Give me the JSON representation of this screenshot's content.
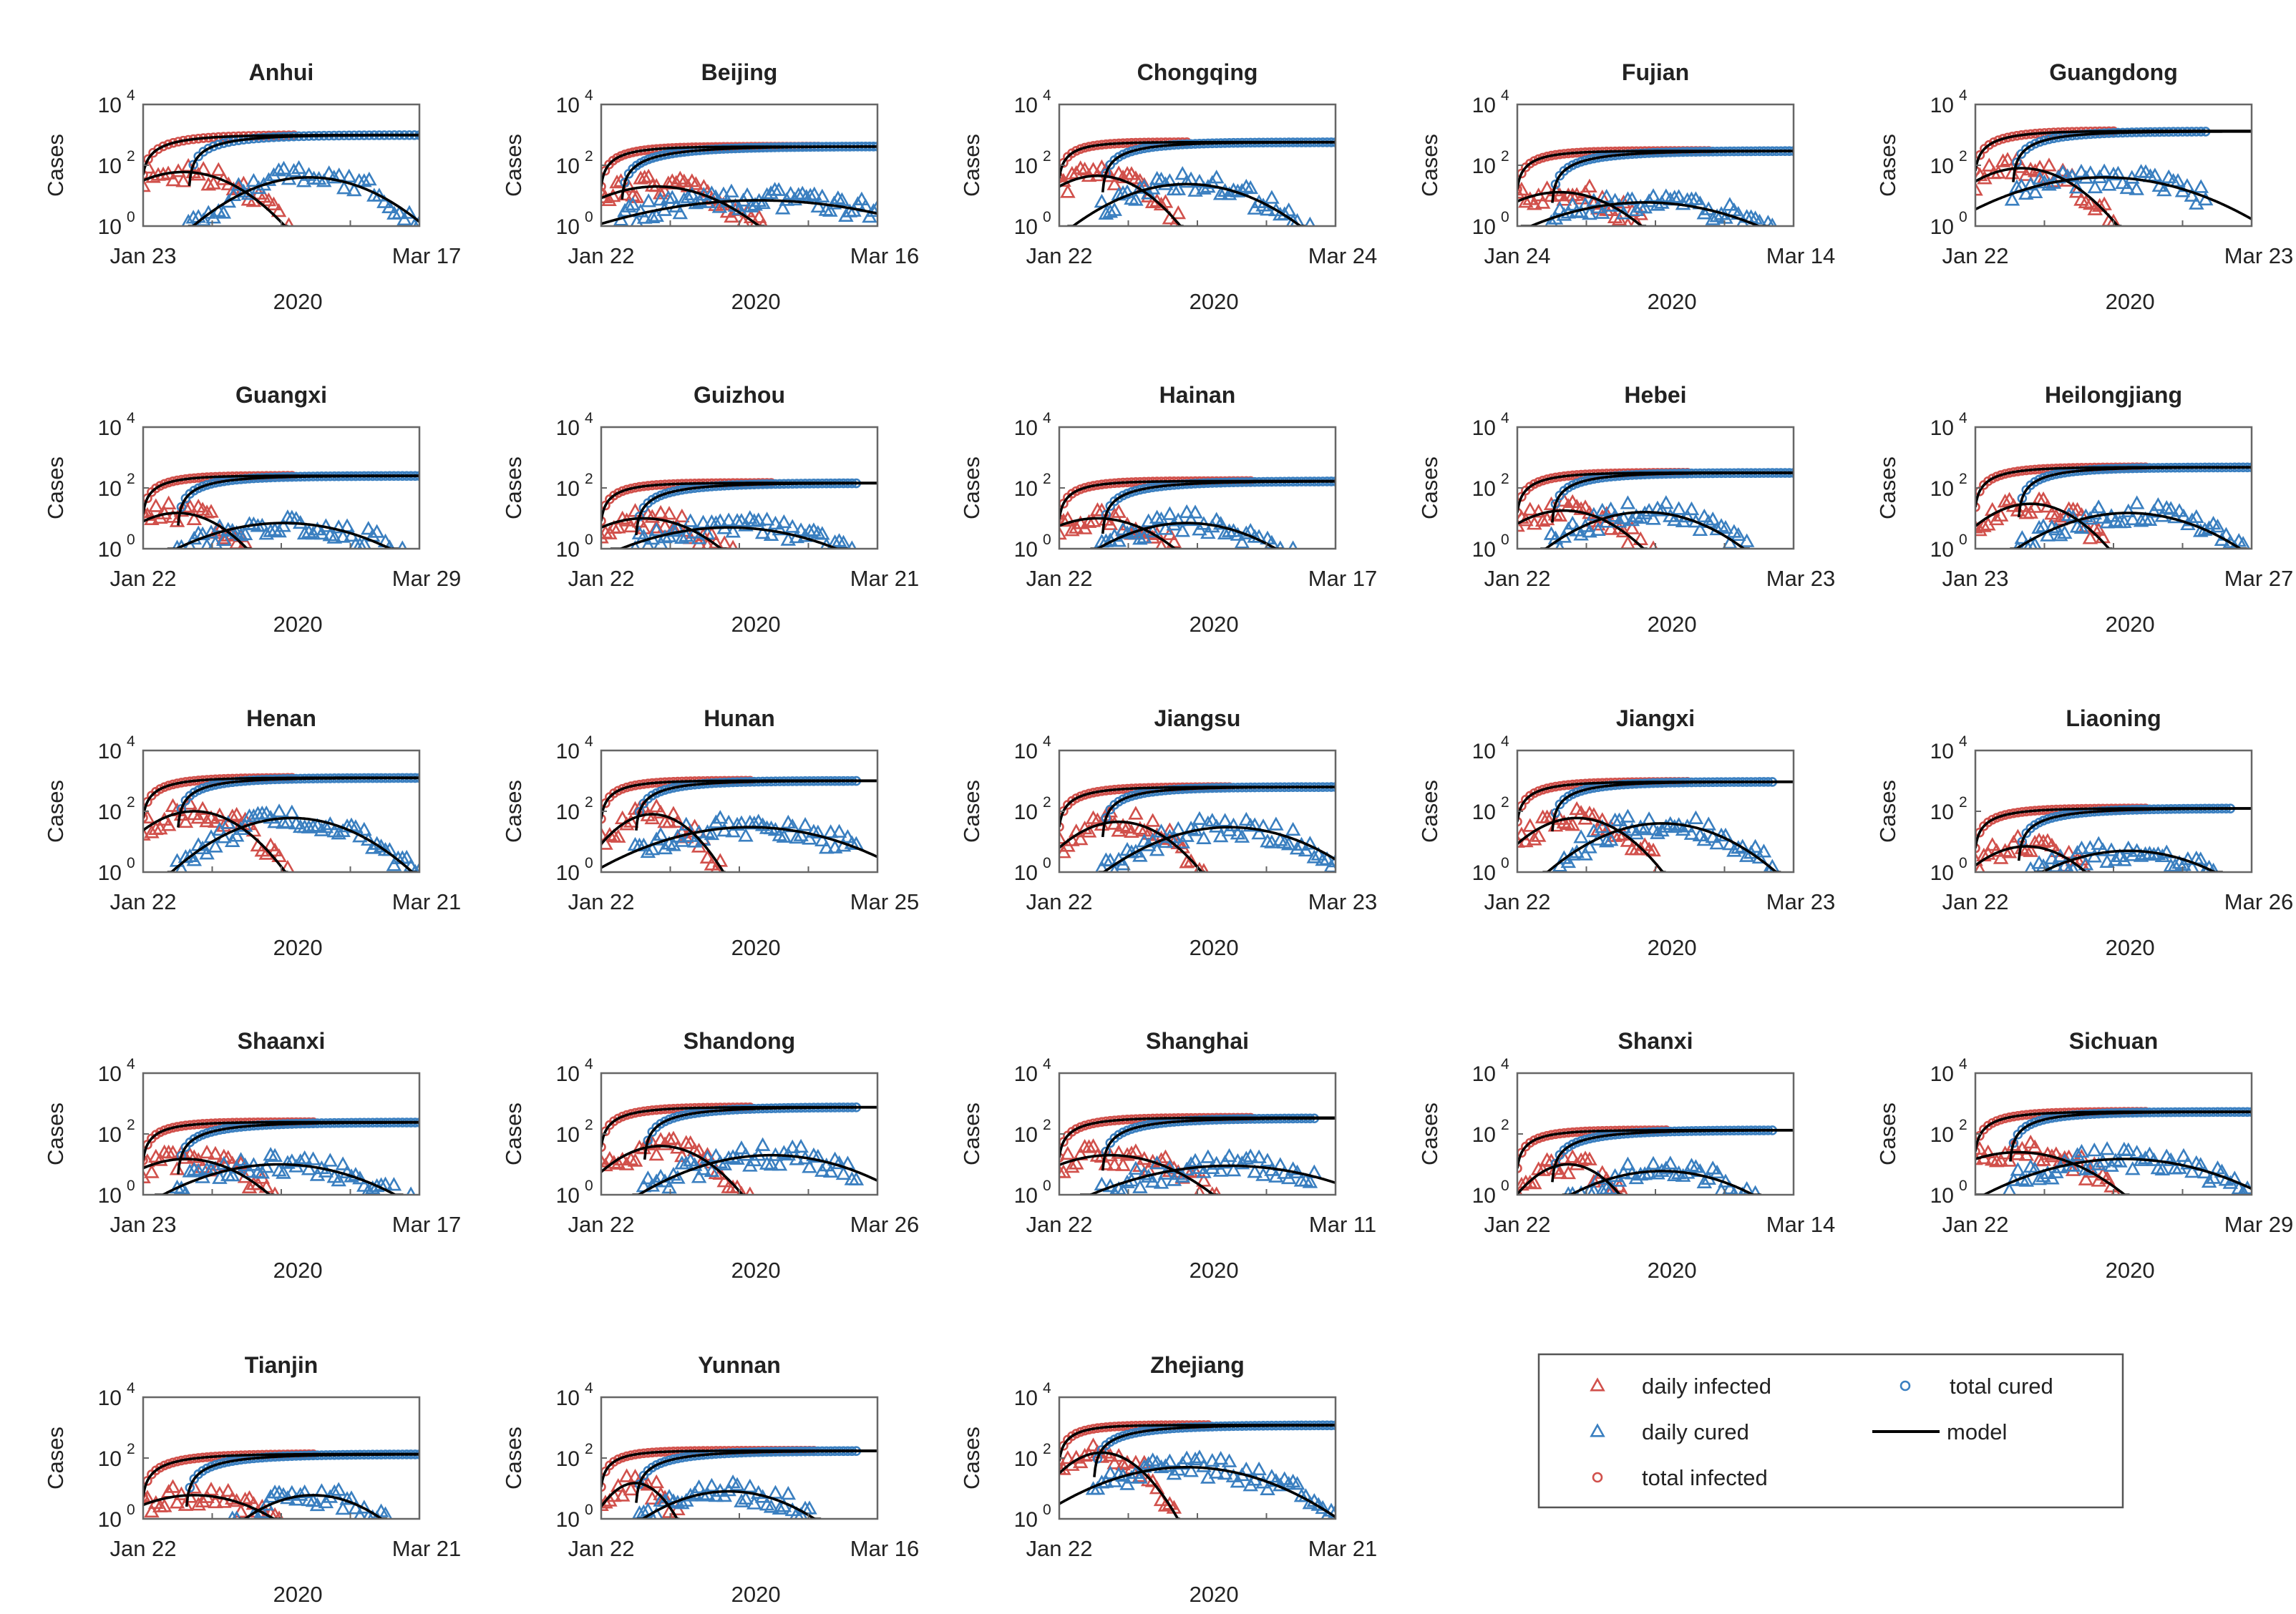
{
  "colors": {
    "infected": "#d1504b",
    "cured": "#3a7fc0",
    "model": "#000000",
    "axis": "#666666"
  },
  "chart_data": {
    "type": "scatter",
    "layout": "small-multiples",
    "yscale": "log",
    "ylabel": "Cases",
    "xlabel": "2020",
    "yticks": [
      {
        "value": 1,
        "base": "10",
        "exp": "0"
      },
      {
        "value": 100,
        "base": "10",
        "exp": "2"
      },
      {
        "value": 10000,
        "base": "10",
        "exp": "4"
      }
    ],
    "ylim": [
      1,
      10000
    ],
    "legend": {
      "position": "bottom-right",
      "entries": [
        {
          "label": "daily infected",
          "marker": "triangle",
          "color": "infected"
        },
        {
          "label": "total cured",
          "marker": "circle",
          "color": "cured"
        },
        {
          "label": "daily cured",
          "marker": "triangle",
          "color": "cured"
        },
        {
          "label": "model",
          "marker": "line",
          "color": "model"
        },
        {
          "label": "total infected",
          "marker": "circle",
          "color": "infected"
        }
      ]
    },
    "panels": [
      {
        "title": "Anhui",
        "start": "Jan 23",
        "end": "Mar 17",
        "days": 55,
        "total_infected": {
          "plateau": 990,
          "tau": 8,
          "obs_end": 30
        },
        "total_cured": {
          "plateau": 985,
          "tau": 9,
          "lag": 9,
          "obs_end": 55
        },
        "daily_infected": {
          "peak": 60,
          "center": 8,
          "width": 10,
          "obs_end": 30
        },
        "daily_cured": {
          "peak": 40,
          "center": 33,
          "width": 12,
          "obs_start": 9,
          "obs_end": 55
        }
      },
      {
        "title": "Beijing",
        "start": "Jan 22",
        "end": "Mar 16",
        "days": 70,
        "total_infected": {
          "plateau": 410,
          "tau": 8,
          "obs_end": 55
        },
        "total_cured": {
          "plateau": 420,
          "tau": 15,
          "lag": 5,
          "obs_end": 70
        },
        "daily_infected": {
          "peak": 20,
          "center": 14,
          "width": 15,
          "obs_end": 55
        },
        "daily_cured": {
          "peak": 7,
          "center": 40,
          "width": 30,
          "obs_start": 5,
          "obs_end": 70
        }
      },
      {
        "title": "Chongqing",
        "start": "Jan 22",
        "end": "Mar 24",
        "days": 65,
        "total_infected": {
          "plateau": 576,
          "tau": 6,
          "obs_end": 30
        },
        "total_cured": {
          "plateau": 570,
          "tau": 10,
          "lag": 10,
          "obs_end": 65
        },
        "daily_infected": {
          "peak": 45,
          "center": 9,
          "width": 10,
          "obs_end": 30
        },
        "daily_cured": {
          "peak": 24,
          "center": 30,
          "width": 15,
          "obs_start": 10,
          "obs_end": 65
        }
      },
      {
        "title": "Fujian",
        "start": "Jan 24",
        "end": "Mar 14",
        "days": 65,
        "total_infected": {
          "plateau": 296,
          "tau": 7,
          "obs_end": 45
        },
        "total_cured": {
          "plateau": 295,
          "tau": 12,
          "lag": 8,
          "obs_end": 65
        },
        "daily_infected": {
          "peak": 13,
          "center": 10,
          "width": 12,
          "obs_end": 45
        },
        "daily_cured": {
          "peak": 6,
          "center": 30,
          "width": 20,
          "obs_start": 8,
          "obs_end": 65
        }
      },
      {
        "title": "Guangdong",
        "start": "Jan 22",
        "end": "Mar 23",
        "days": 60,
        "total_infected": {
          "plateau": 1350,
          "tau": 8,
          "obs_end": 30
        },
        "total_cured": {
          "plateau": 1300,
          "tau": 10,
          "lag": 8,
          "obs_end": 50
        },
        "daily_infected": {
          "peak": 80,
          "center": 10,
          "width": 10,
          "obs_end": 30
        },
        "daily_cured": {
          "peak": 40,
          "center": 28,
          "width": 18,
          "obs_start": 8,
          "obs_end": 50
        }
      },
      {
        "title": "Guangxi",
        "start": "Jan 22",
        "end": "Mar 29",
        "days": 65,
        "total_infected": {
          "plateau": 252,
          "tau": 7,
          "obs_end": 35
        },
        "total_cured": {
          "plateau": 248,
          "tau": 10,
          "lag": 8,
          "obs_end": 65
        },
        "daily_infected": {
          "peak": 15,
          "center": 8,
          "width": 10,
          "obs_end": 35
        },
        "daily_cured": {
          "peak": 7,
          "center": 33,
          "width": 18,
          "obs_start": 8,
          "obs_end": 65
        }
      },
      {
        "title": "Guizhou",
        "start": "Jan 22",
        "end": "Mar 21",
        "days": 65,
        "total_infected": {
          "plateau": 146,
          "tau": 7,
          "obs_end": 40
        },
        "total_cured": {
          "plateau": 144,
          "tau": 12,
          "lag": 8,
          "obs_end": 60
        },
        "daily_infected": {
          "peak": 10,
          "center": 10,
          "width": 12,
          "obs_end": 40
        },
        "daily_cured": {
          "peak": 5,
          "center": 30,
          "width": 20,
          "obs_start": 8,
          "obs_end": 60
        }
      },
      {
        "title": "Hainan",
        "start": "Jan 22",
        "end": "Mar 17",
        "days": 65,
        "total_infected": {
          "plateau": 168,
          "tau": 7,
          "obs_end": 45
        },
        "total_cured": {
          "plateau": 165,
          "tau": 12,
          "lag": 10,
          "obs_end": 65
        },
        "daily_infected": {
          "peak": 10,
          "center": 9,
          "width": 12,
          "obs_end": 45
        },
        "daily_cured": {
          "peak": 7,
          "center": 30,
          "width": 15,
          "obs_start": 10,
          "obs_end": 65
        }
      },
      {
        "title": "Hebei",
        "start": "Jan 22",
        "end": "Mar 23",
        "days": 65,
        "total_infected": {
          "plateau": 318,
          "tau": 8,
          "obs_end": 40
        },
        "total_cured": {
          "plateau": 312,
          "tau": 10,
          "lag": 8,
          "obs_end": 65
        },
        "daily_infected": {
          "peak": 18,
          "center": 11,
          "width": 11,
          "obs_end": 40
        },
        "daily_cured": {
          "peak": 16,
          "center": 30,
          "width": 14,
          "obs_start": 8,
          "obs_end": 65
        }
      },
      {
        "title": "Heilongjiang",
        "start": "Jan 23",
        "end": "Mar 27",
        "days": 65,
        "total_infected": {
          "plateau": 480,
          "tau": 8,
          "obs_end": 40
        },
        "total_cured": {
          "plateau": 475,
          "tau": 10,
          "lag": 10,
          "obs_end": 65
        },
        "daily_infected": {
          "peak": 30,
          "center": 13,
          "width": 10,
          "obs_end": 40
        },
        "daily_cured": {
          "peak": 15,
          "center": 36,
          "width": 16,
          "obs_start": 10,
          "obs_end": 65
        }
      },
      {
        "title": "Henan",
        "start": "Jan 22",
        "end": "Mar 21",
        "days": 65,
        "total_infected": {
          "plateau": 1270,
          "tau": 8,
          "obs_end": 35
        },
        "total_cured": {
          "plateau": 1250,
          "tau": 10,
          "lag": 8,
          "obs_end": 65
        },
        "daily_infected": {
          "peak": 100,
          "center": 12,
          "width": 10,
          "obs_end": 35
        },
        "daily_cured": {
          "peak": 60,
          "center": 35,
          "width": 14,
          "obs_start": 8,
          "obs_end": 65
        }
      },
      {
        "title": "Hunan",
        "start": "Jan 22",
        "end": "Mar 25",
        "days": 65,
        "total_infected": {
          "plateau": 1018,
          "tau": 7,
          "obs_end": 35
        },
        "total_cured": {
          "plateau": 1000,
          "tau": 10,
          "lag": 8,
          "obs_end": 60
        },
        "daily_infected": {
          "peak": 80,
          "center": 12,
          "width": 8,
          "obs_end": 35
        },
        "daily_cured": {
          "peak": 30,
          "center": 35,
          "width": 20,
          "obs_start": 8,
          "obs_end": 60
        }
      },
      {
        "title": "Jiangsu",
        "start": "Jan 22",
        "end": "Mar 23",
        "days": 65,
        "total_infected": {
          "plateau": 631,
          "tau": 8,
          "obs_end": 40
        },
        "total_cured": {
          "plateau": 630,
          "tau": 10,
          "lag": 10,
          "obs_end": 65
        },
        "daily_infected": {
          "peak": 45,
          "center": 14,
          "width": 10,
          "obs_end": 40
        },
        "daily_cured": {
          "peak": 30,
          "center": 40,
          "width": 16,
          "obs_start": 10,
          "obs_end": 65
        }
      },
      {
        "title": "Jiangxi",
        "start": "Jan 22",
        "end": "Mar 23",
        "days": 65,
        "total_infected": {
          "plateau": 935,
          "tau": 8,
          "obs_end": 40
        },
        "total_cured": {
          "plateau": 930,
          "tau": 10,
          "lag": 8,
          "obs_end": 60
        },
        "daily_infected": {
          "peak": 60,
          "center": 14,
          "width": 10,
          "obs_end": 40
        },
        "daily_cured": {
          "peak": 40,
          "center": 34,
          "width": 14,
          "obs_start": 8,
          "obs_end": 60
        }
      },
      {
        "title": "Liaoning",
        "start": "Jan 22",
        "end": "Mar 26",
        "days": 65,
        "total_infected": {
          "plateau": 125,
          "tau": 8,
          "obs_end": 40
        },
        "total_cured": {
          "plateau": 125,
          "tau": 12,
          "lag": 10,
          "obs_end": 60
        },
        "daily_infected": {
          "peak": 7,
          "center": 12,
          "width": 10,
          "obs_end": 40
        },
        "daily_cured": {
          "peak": 5,
          "center": 36,
          "width": 16,
          "obs_start": 10,
          "obs_end": 60
        }
      },
      {
        "title": "Shaanxi",
        "start": "Jan 23",
        "end": "Mar 17",
        "days": 65,
        "total_infected": {
          "plateau": 245,
          "tau": 7,
          "obs_end": 40
        },
        "total_cured": {
          "plateau": 240,
          "tau": 12,
          "lag": 8,
          "obs_end": 65
        },
        "daily_infected": {
          "peak": 15,
          "center": 10,
          "width": 12,
          "obs_end": 40
        },
        "daily_cured": {
          "peak": 10,
          "center": 32,
          "width": 18,
          "obs_start": 8,
          "obs_end": 65
        }
      },
      {
        "title": "Shandong",
        "start": "Jan 22",
        "end": "Mar 26",
        "days": 65,
        "total_infected": {
          "plateau": 760,
          "tau": 8,
          "obs_end": 35
        },
        "total_cured": {
          "plateau": 760,
          "tau": 12,
          "lag": 10,
          "obs_end": 60
        },
        "daily_infected": {
          "peak": 40,
          "center": 14,
          "width": 10,
          "obs_end": 35
        },
        "daily_cured": {
          "peak": 20,
          "center": 40,
          "width": 18,
          "obs_start": 10,
          "obs_end": 60
        }
      },
      {
        "title": "Shanghai",
        "start": "Jan 22",
        "end": "Mar 11",
        "days": 65,
        "total_infected": {
          "plateau": 342,
          "tau": 8,
          "obs_end": 45
        },
        "total_cured": {
          "plateau": 330,
          "tau": 12,
          "lag": 10,
          "obs_end": 60
        },
        "daily_infected": {
          "peak": 20,
          "center": 12,
          "width": 14,
          "obs_end": 45
        },
        "daily_cured": {
          "peak": 9,
          "center": 40,
          "width": 22,
          "obs_start": 10,
          "obs_end": 60
        }
      },
      {
        "title": "Shanxi",
        "start": "Jan 22",
        "end": "Mar 14",
        "days": 65,
        "total_infected": {
          "plateau": 133,
          "tau": 7,
          "obs_end": 35
        },
        "total_cured": {
          "plateau": 133,
          "tau": 12,
          "lag": 8,
          "obs_end": 60
        },
        "daily_infected": {
          "peak": 10,
          "center": 12,
          "width": 8,
          "obs_end": 35
        },
        "daily_cured": {
          "peak": 6,
          "center": 34,
          "width": 16,
          "obs_start": 8,
          "obs_end": 60
        }
      },
      {
        "title": "Sichuan",
        "start": "Jan 22",
        "end": "Mar 29",
        "days": 65,
        "total_infected": {
          "plateau": 540,
          "tau": 8,
          "obs_end": 40
        },
        "total_cured": {
          "plateau": 530,
          "tau": 10,
          "lag": 8,
          "obs_end": 65
        },
        "daily_infected": {
          "peak": 25,
          "center": 10,
          "width": 14,
          "obs_end": 40
        },
        "daily_cured": {
          "peak": 15,
          "center": 35,
          "width": 20,
          "obs_start": 8,
          "obs_end": 65
        }
      },
      {
        "title": "Tianjin",
        "start": "Jan 22",
        "end": "Mar 21",
        "days": 65,
        "total_infected": {
          "plateau": 136,
          "tau": 10,
          "obs_end": 40
        },
        "total_cured": {
          "plateau": 133,
          "tau": 12,
          "lag": 10,
          "obs_end": 65
        },
        "daily_infected": {
          "peak": 6,
          "center": 12,
          "width": 14,
          "obs_end": 40
        },
        "daily_cured": {
          "peak": 6,
          "center": 40,
          "width": 12,
          "obs_start": 10,
          "obs_end": 65
        }
      },
      {
        "title": "Yunnan",
        "start": "Jan 22",
        "end": "Mar 16",
        "days": 65,
        "total_infected": {
          "plateau": 174,
          "tau": 6,
          "obs_end": 50
        },
        "total_cured": {
          "plateau": 172,
          "tau": 12,
          "lag": 8,
          "obs_end": 60
        },
        "daily_infected": {
          "peak": 15,
          "center": 8,
          "width": 6,
          "obs_end": 40
        },
        "daily_cured": {
          "peak": 8,
          "center": 30,
          "width": 14,
          "obs_start": 8,
          "obs_end": 60
        }
      },
      {
        "title": "Zhejiang",
        "start": "Jan 22",
        "end": "Mar 21",
        "days": 65,
        "total_infected": {
          "plateau": 1215,
          "tau": 6,
          "obs_end": 35
        },
        "total_cured": {
          "plateau": 1200,
          "tau": 12,
          "lag": 8,
          "obs_end": 65
        },
        "daily_infected": {
          "peak": 150,
          "center": 10,
          "width": 8,
          "obs_end": 35
        },
        "daily_cured": {
          "peak": 50,
          "center": 30,
          "width": 18,
          "obs_start": 8,
          "obs_end": 65
        }
      }
    ]
  }
}
